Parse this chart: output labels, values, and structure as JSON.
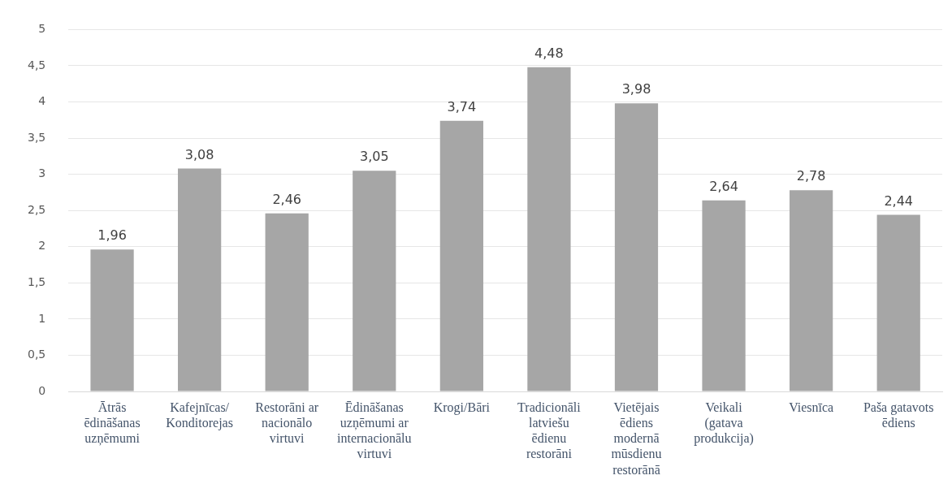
{
  "chart_data": {
    "type": "bar",
    "categories": [
      "Ātrās\nēdināšanas\nuzņēmumi",
      "Kafejnīcas/\nKonditorejas",
      "Restorāni ar\nnacionālo\nvirtuvi",
      "Ēdināšanas\nuzņēmumi ar\ninternacionālu\nvirtuvi",
      "Krogi/Bāri",
      "Tradicionāli\nlatviešu\nēdienu\nrestorāni",
      "Vietējais\nēdiens\nmodernā\nmūsdienu\nrestorānā",
      "Veikali\n(gatava\nprodukcija)",
      "Viesnīca",
      "Paša gatavots\nēdiens"
    ],
    "values": [
      1.96,
      3.08,
      2.46,
      3.05,
      3.74,
      4.48,
      3.98,
      2.64,
      2.78,
      2.44
    ],
    "value_labels": [
      "1,96",
      "3,08",
      "2,46",
      "3,05",
      "3,74",
      "4,48",
      "3,98",
      "2,64",
      "2,78",
      "2,44"
    ],
    "color": "#a6a6a6",
    "ylim": [
      0,
      5
    ],
    "yticks": [
      0,
      {
        "value": 0.5,
        "label": "0,5"
      },
      1,
      {
        "value": 1.5,
        "label": "1,5"
      },
      2,
      {
        "value": 2.5,
        "label": "2,5"
      },
      3,
      {
        "value": 3.5,
        "label": "3,5"
      },
      4,
      {
        "value": 4.5,
        "label": "4,5"
      },
      5
    ],
    "grid": "y",
    "legend": false
  }
}
